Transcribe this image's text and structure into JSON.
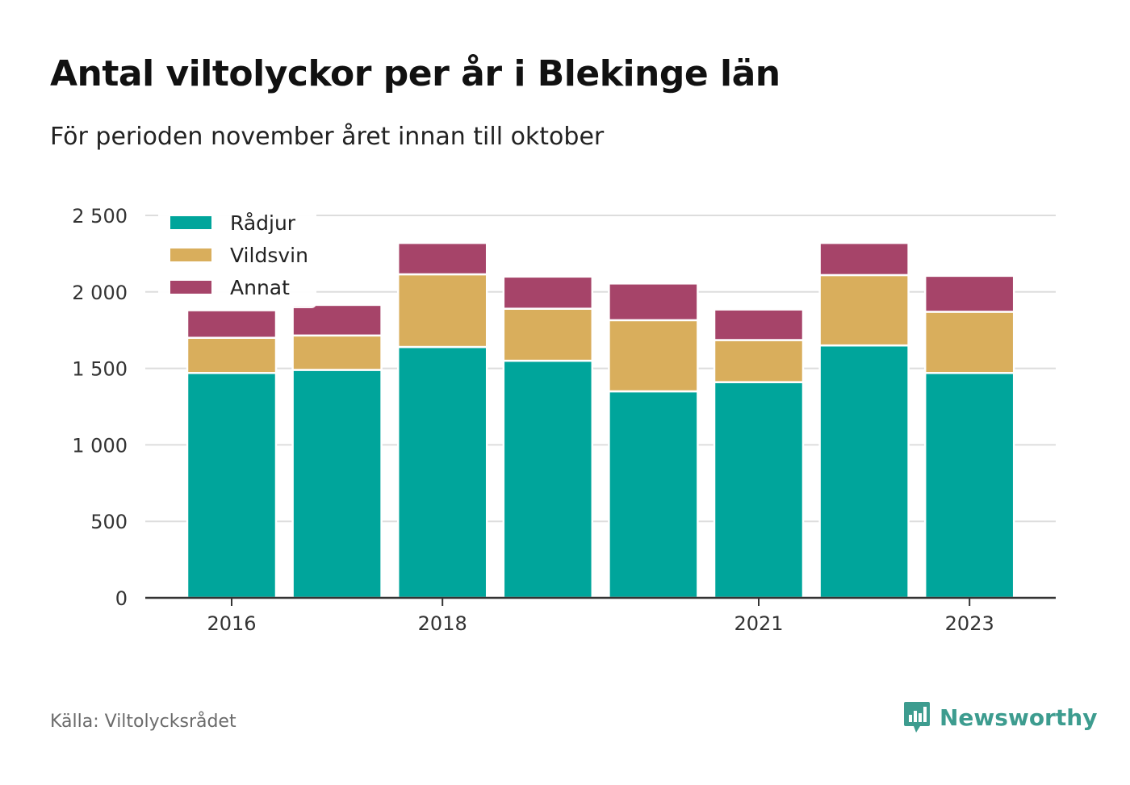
{
  "header": {
    "title": "Antal viltolyckor per år i Blekinge län",
    "subtitle": "För perioden november året innan till oktober"
  },
  "footer": {
    "source": "Källa: Viltolycksrådet",
    "brand": "Newsworthy",
    "brand_icon": "bar-chart-speech-bubble-icon",
    "brand_color": "#3d9c8f"
  },
  "chart_data": {
    "type": "bar",
    "stacked": true,
    "categories": [
      "2016",
      "2017",
      "2018",
      "2019",
      "2020",
      "2021",
      "2022",
      "2023"
    ],
    "x_tick_labels": [
      "2016",
      "",
      "2018",
      "",
      "",
      "2021",
      "",
      "2023"
    ],
    "series": [
      {
        "name": "Rådjur",
        "color": "#00a59b",
        "values": [
          1470,
          1490,
          1640,
          1550,
          1350,
          1410,
          1650,
          1470
        ]
      },
      {
        "name": "Vildsvin",
        "color": "#d9ae5c",
        "values": [
          230,
          225,
          475,
          340,
          465,
          275,
          460,
          400
        ]
      },
      {
        "name": "Annat",
        "color": "#a64469",
        "values": [
          180,
          200,
          205,
          210,
          240,
          200,
          210,
          235
        ]
      }
    ],
    "ylim": [
      0,
      2500
    ],
    "y_ticks": [
      0,
      500,
      1000,
      1500,
      2000,
      2500
    ],
    "y_tick_labels": [
      "0",
      "500",
      "1 000",
      "1 500",
      "2 000",
      "2 500"
    ],
    "grid": true,
    "legend_position": "top-left"
  }
}
